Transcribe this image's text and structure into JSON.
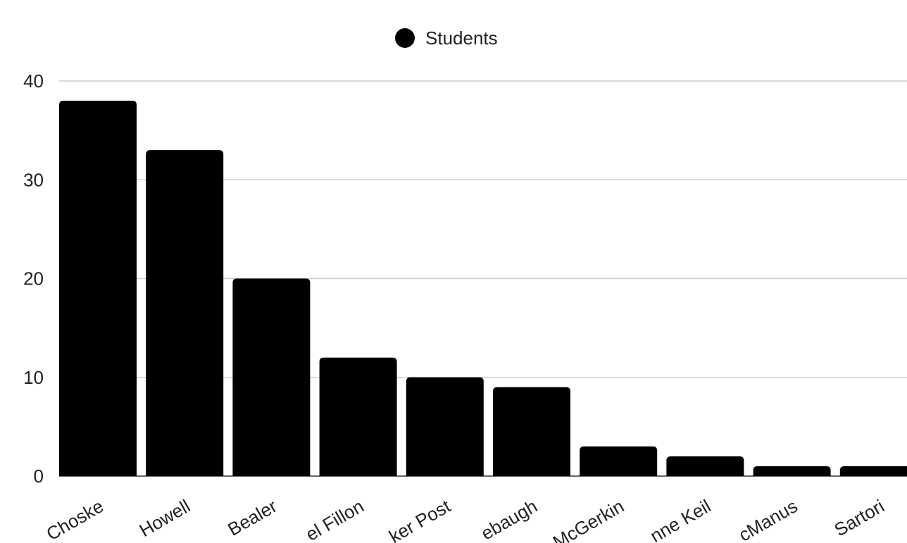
{
  "chart_data": {
    "type": "bar",
    "categories": [
      "Choske",
      "Howell",
      "Bealer",
      "el Fillon",
      "ker Post",
      "ebaugh",
      "McGerkin",
      "nne Keil",
      "cManus",
      "Sartori"
    ],
    "series": [
      {
        "name": "Students",
        "values": [
          38,
          33,
          20,
          12,
          10,
          9,
          3,
          2,
          1,
          1
        ],
        "color": "#000000"
      }
    ],
    "yticks": [
      0,
      10,
      20,
      30,
      40
    ],
    "ylim": [
      0,
      40
    ],
    "grid": true,
    "legend_position": "top-center",
    "title": "",
    "xlabel": "",
    "ylabel": ""
  }
}
